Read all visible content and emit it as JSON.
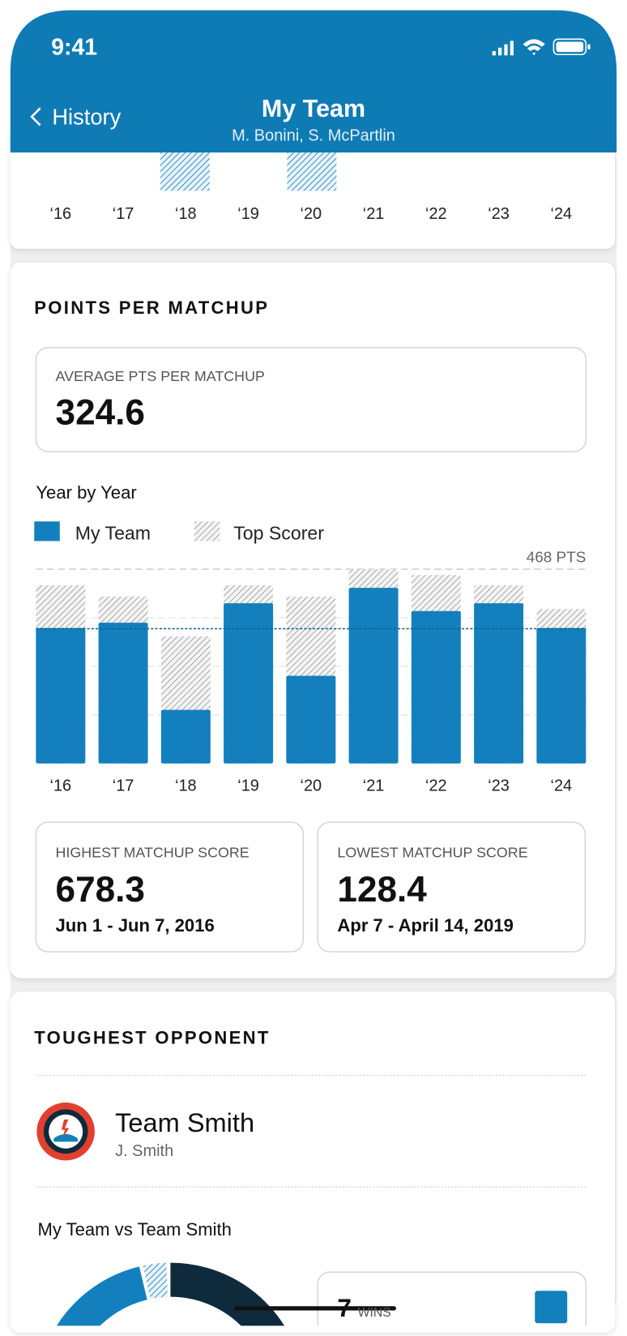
{
  "status": {
    "time": "9:41"
  },
  "nav": {
    "back": "History",
    "title": "My Team",
    "subtitle": "M. Bonini, S. McPartlin"
  },
  "points": {
    "heading": "POINTS PER MATCHUP",
    "average_label": "AVERAGE PTS PER MATCHUP",
    "highest": {
      "label": "HIGHEST MATCHUP SCORE",
      "value": "678.3",
      "dates": "Jun 1 - Jun 7, 2016"
    },
    "lowest": {
      "label": "LOWEST MATCHUP SCORE",
      "value": "128.4",
      "dates": "Apr 7 - April 14, 2019"
    }
  },
  "chart_data": {
    "type": "bar",
    "subtitle": "Year by Year",
    "average": 324.6,
    "categories": [
      "‘16",
      "‘17",
      "‘18",
      "‘19",
      "‘20",
      "‘21",
      "‘22",
      "‘23",
      "‘24"
    ],
    "series": [
      {
        "name": "My Team",
        "color": "#1380bd",
        "values": [
          326,
          339,
          129,
          386,
          211,
          423,
          367,
          386,
          326
        ]
      },
      {
        "name": "Top Scorer",
        "color": "#9a9a9a",
        "values": [
          429,
          402,
          306,
          429,
          402,
          468,
          454,
          429,
          372
        ]
      }
    ],
    "ylim": [
      0,
      468
    ],
    "yticks": [
      {
        "value": 468,
        "label": "468 PTS"
      }
    ],
    "grid_values": [
      117,
      234,
      351
    ]
  },
  "opponent": {
    "heading": "TOUGHEST OPPONENT",
    "team": "Team Smith",
    "owner": "J. Smith",
    "versus": "My Team vs Team Smith",
    "wins": "7",
    "wins_label": "WINS"
  }
}
